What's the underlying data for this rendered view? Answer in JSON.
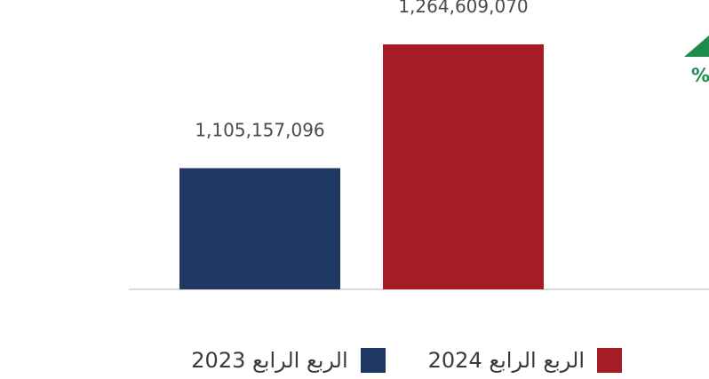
{
  "chart_data": {
    "type": "bar",
    "categories": [
      "الربع الرابع 2023",
      "الربع الرابع 2024"
    ],
    "values": [
      1105157096,
      1264609070
    ],
    "value_labels": [
      "1,105,157,096",
      "1,264,609,070"
    ],
    "colors": [
      "#1f3864",
      "#a51c24"
    ],
    "baseline_color": "#d9d9d9",
    "change_indicator": {
      "direction": "up",
      "text": "%",
      "color": "#1f8a4c"
    },
    "legend": [
      {
        "label": "الربع الرابع 2024",
        "color": "#a51c24"
      },
      {
        "label": "الربع الرابع 2023",
        "color": "#1f3864"
      }
    ],
    "legend_position": "bottom",
    "grid": false,
    "title": "",
    "xlabel": "",
    "ylabel": ""
  }
}
